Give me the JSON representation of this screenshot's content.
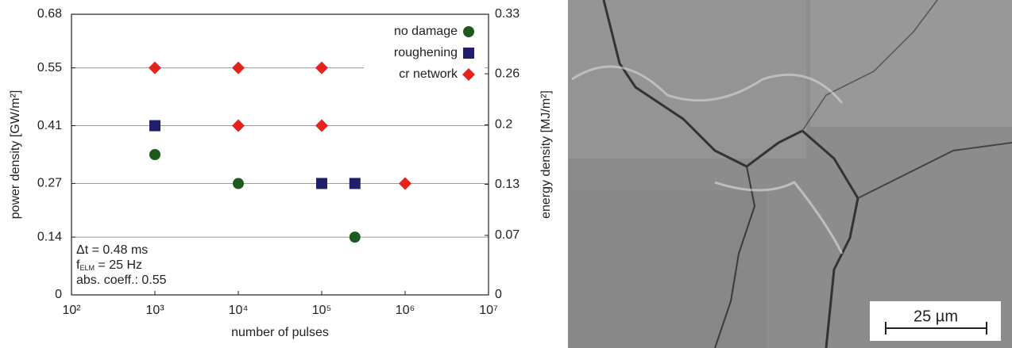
{
  "chart_data": {
    "type": "scatter",
    "xlabel": "number of pulses",
    "ylabel": "power density [GW/m²]",
    "y2label": "energy density [MJ/m²]",
    "log_x": true,
    "grid": true,
    "legend": "upper right",
    "xlim": [
      100,
      10000000
    ],
    "xticks": [
      {
        "value": 100,
        "label": "10²"
      },
      {
        "value": 1000,
        "label": "10³"
      },
      {
        "value": 10000,
        "label": "10⁴"
      },
      {
        "value": 100000,
        "label": "10⁵"
      },
      {
        "value": 1000000,
        "label": "10⁶"
      },
      {
        "value": 10000000,
        "label": "10⁷"
      }
    ],
    "ylim": [
      0,
      0.68
    ],
    "yticks": [
      0,
      0.14,
      0.27,
      0.41,
      0.55,
      0.68
    ],
    "y2lim": [
      0,
      0.33
    ],
    "y2ticks": [
      0,
      0.07,
      0.13,
      0.2,
      0.26,
      0.33
    ],
    "series": [
      {
        "name": "no damage",
        "color": "#1e5a1e",
        "marker": "circle",
        "x": [
          1000,
          10000,
          250000
        ],
        "values": [
          0.34,
          0.27,
          0.14
        ]
      },
      {
        "name": "roughening",
        "color": "#1f1f6b",
        "marker": "square",
        "x": [
          1000,
          100000,
          250000
        ],
        "values": [
          0.41,
          0.27,
          0.27
        ]
      },
      {
        "name": "cr network",
        "color": "#e5231d",
        "marker": "diamond",
        "x": [
          1000,
          10000,
          100000,
          10000,
          100000,
          1000000
        ],
        "values": [
          0.55,
          0.55,
          0.55,
          0.41,
          0.41,
          0.27
        ]
      }
    ],
    "annotations": [
      [
        "Δt = 0.48 ms"
      ],
      [
        "f",
        "ELM",
        " = 25 Hz"
      ],
      [
        "abs. coeff.: 0.55"
      ]
    ]
  },
  "image": {
    "scale_bar": "25 µm"
  }
}
